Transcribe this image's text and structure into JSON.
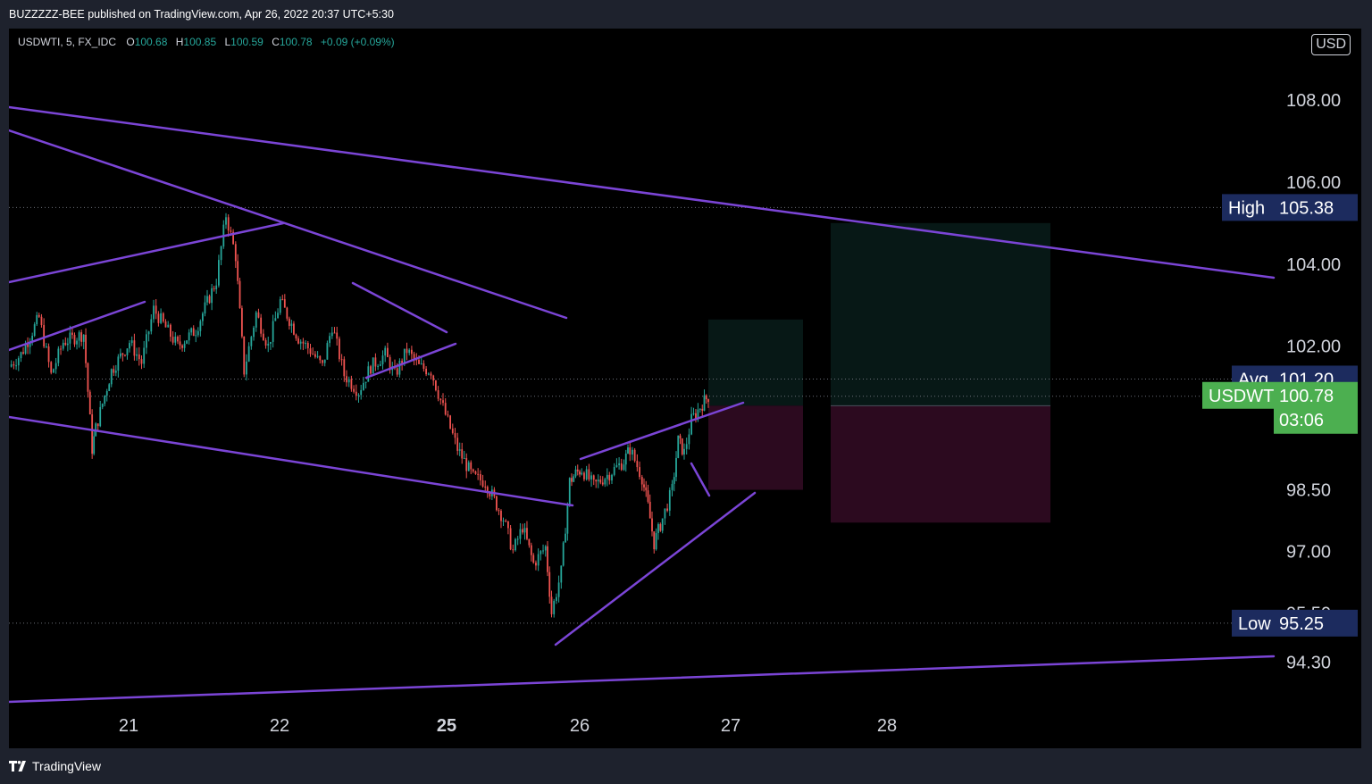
{
  "header": {
    "attribution": "BUZZZZZ-BEE published on TradingView.com, Apr 26, 2022 20:37 UTC+5:30"
  },
  "legend": {
    "symbol": "USDWTI, 5, FX_IDC",
    "o_label": "O",
    "o_value": "100.68",
    "h_label": "H",
    "h_value": "100.85",
    "l_label": "L",
    "l_value": "100.59",
    "c_label": "C",
    "c_value": "100.78",
    "change": "+0.09 (+0.09%)"
  },
  "currency": "USD",
  "colors": {
    "background": "#000000",
    "frame": "#1e222d",
    "trendline": "#7b45d6",
    "candle_up": "#26a69a",
    "candle_down": "#ef5350",
    "tag_navy": "#1c2b5e",
    "tag_green": "#4caf50",
    "profit_zone": "#071816",
    "loss_zone": "#2c0a1f"
  },
  "footer": {
    "brand": "TradingView",
    "logo_icon": "tradingview-logo-icon"
  },
  "chart_data": {
    "type": "candlestick",
    "interval": "5",
    "symbol": "USDWTI",
    "exchange": "FX_IDC",
    "price_axis": {
      "ticks": [
        "108.00",
        "106.00",
        "104.00",
        "102.00",
        "98.50",
        "97.00",
        "95.50",
        "94.30"
      ],
      "range": [
        93.6,
        109.2
      ]
    },
    "time_axis": {
      "ticks": [
        "21",
        "22",
        "25",
        "26",
        "27",
        "28"
      ],
      "bold_tick": "25"
    },
    "last_price": {
      "label": "USDWTI",
      "value": "100.78",
      "countdown": "03:06"
    },
    "high": {
      "label": "High",
      "value": "105.38"
    },
    "low": {
      "label": "Low",
      "value": "95.25"
    },
    "avg": {
      "label": "Avg",
      "value": "101.20"
    },
    "path": [
      [
        0.0,
        101.5
      ],
      [
        0.1,
        101.8
      ],
      [
        0.25,
        102.7
      ],
      [
        0.35,
        101.3
      ],
      [
        0.45,
        102.1
      ],
      [
        0.62,
        102.3
      ],
      [
        0.69,
        99.5
      ],
      [
        0.72,
        100.0
      ],
      [
        0.85,
        101.4
      ],
      [
        1.0,
        102.1
      ],
      [
        1.1,
        101.6
      ],
      [
        1.2,
        102.9
      ],
      [
        1.4,
        102.0
      ],
      [
        1.55,
        102.4
      ],
      [
        1.72,
        103.6
      ],
      [
        1.8,
        105.2
      ],
      [
        1.88,
        104.2
      ],
      [
        1.95,
        101.4
      ],
      [
        2.05,
        102.8
      ],
      [
        2.15,
        102.0
      ],
      [
        2.25,
        103.1
      ],
      [
        2.4,
        102.2
      ],
      [
        2.5,
        101.9
      ],
      [
        2.6,
        101.5
      ],
      [
        2.68,
        102.5
      ],
      [
        2.78,
        101.3
      ],
      [
        2.9,
        100.9
      ],
      [
        3.0,
        101.5
      ],
      [
        3.12,
        101.8
      ],
      [
        3.2,
        101.3
      ],
      [
        3.3,
        101.9
      ],
      [
        3.4,
        101.5
      ],
      [
        3.5,
        101.4
      ],
      [
        3.6,
        100.5
      ],
      [
        3.72,
        99.5
      ],
      [
        3.85,
        98.8
      ],
      [
        3.95,
        98.7
      ],
      [
        4.1,
        97.8
      ],
      [
        4.18,
        97.0
      ],
      [
        4.26,
        97.6
      ],
      [
        4.35,
        96.7
      ],
      [
        4.45,
        97.1
      ],
      [
        4.5,
        95.5
      ],
      [
        4.58,
        96.5
      ],
      [
        4.65,
        98.7
      ],
      [
        4.7,
        98.9
      ],
      [
        4.75,
        99.0
      ],
      [
        4.85,
        98.6
      ],
      [
        4.98,
        98.9
      ],
      [
        5.1,
        99.2
      ],
      [
        5.15,
        99.5
      ],
      [
        5.25,
        98.8
      ],
      [
        5.3,
        98.1
      ],
      [
        5.35,
        97.2
      ],
      [
        5.42,
        97.8
      ],
      [
        5.5,
        98.5
      ],
      [
        5.55,
        99.7
      ],
      [
        5.6,
        99.4
      ],
      [
        5.66,
        100.2
      ],
      [
        5.75,
        100.6
      ],
      [
        5.8,
        100.78
      ]
    ],
    "drawings": [
      "channel top line",
      "channel lower line",
      "descending resistance",
      "rising wedge lines",
      "long-term support",
      "long position boxes"
    ]
  }
}
